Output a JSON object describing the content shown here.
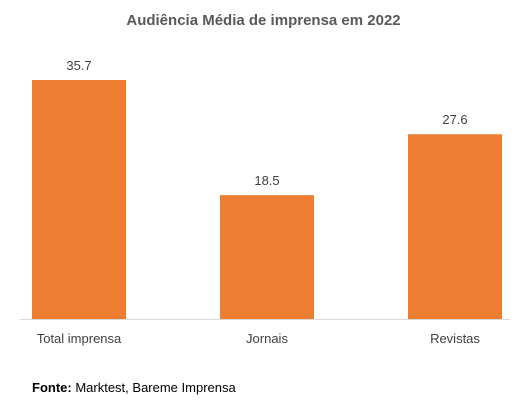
{
  "chart_data": {
    "type": "bar",
    "title": "Audiência Média de imprensa em 2022",
    "categories": [
      "Total imprensa",
      "Jornais",
      "Revistas"
    ],
    "values": [
      35.7,
      18.5,
      27.6
    ],
    "value_labels": [
      "35.7",
      "18.5",
      "27.6"
    ],
    "xlabel": "",
    "ylabel": "",
    "ylim": [
      0,
      35.7
    ],
    "grid": false,
    "legend": "none",
    "bar_color": "#ED7D31"
  },
  "source": {
    "label": "Fonte:",
    "text": " Marktest, Bareme Imprensa"
  }
}
